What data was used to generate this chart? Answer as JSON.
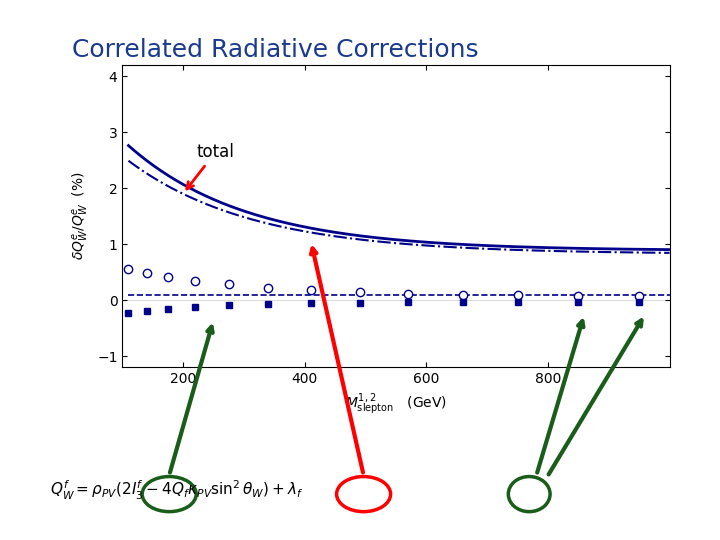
{
  "title": "Correlated Radiative Corrections",
  "title_color": "#1a3a8f",
  "title_fontsize": 18,
  "ylabel": "$\\delta Q_W^e / Q_W^e$  (%)",
  "xlim": [
    100,
    1000
  ],
  "ylim": [
    -1.2,
    4.2
  ],
  "xticks": [
    200,
    400,
    600,
    800
  ],
  "yticks": [
    -1,
    0,
    1,
    2,
    3,
    4
  ],
  "bg_color": "#ffffff",
  "blue_dark": "#00008B",
  "green_dark": "#1a5c1a",
  "red_dark": "#8B0000"
}
